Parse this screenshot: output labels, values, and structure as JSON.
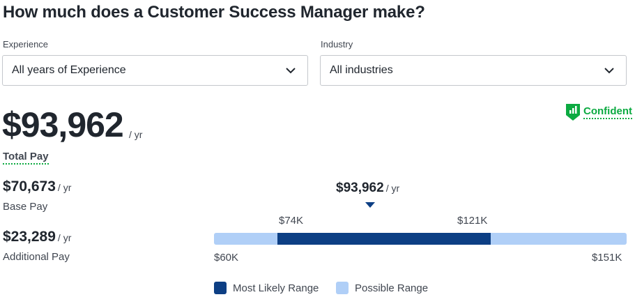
{
  "title": "How much does a Customer Success Manager make?",
  "filters": {
    "experience": {
      "label": "Experience",
      "value": "All years of Experience"
    },
    "industry": {
      "label": "Industry",
      "value": "All industries"
    }
  },
  "total_pay": {
    "amount": "$93,962",
    "per": "/ yr",
    "label": "Total Pay"
  },
  "confidence": {
    "label": "Confident",
    "icon": "bar-chart-shield-icon",
    "color": "#0caa41"
  },
  "base_pay": {
    "amount": "$70,673",
    "per": "/ yr",
    "label": "Base Pay"
  },
  "additional_pay": {
    "amount": "$23,289",
    "per": "/ yr",
    "label": "Additional Pay"
  },
  "range": {
    "median": "$93,962",
    "median_per": "/ yr",
    "likely_low": "$74K",
    "likely_high": "$121K",
    "min": "$60K",
    "max": "$151K",
    "min_value": 60,
    "max_value": 151,
    "likely_low_value": 74,
    "likely_high_value": 121,
    "median_value": 93.962
  },
  "legend": {
    "most_likely": "Most Likely Range",
    "possible": "Possible Range"
  },
  "colors": {
    "most_likely": "#0d3f84",
    "possible": "#b0cff7",
    "accent_green": "#0caa41"
  }
}
